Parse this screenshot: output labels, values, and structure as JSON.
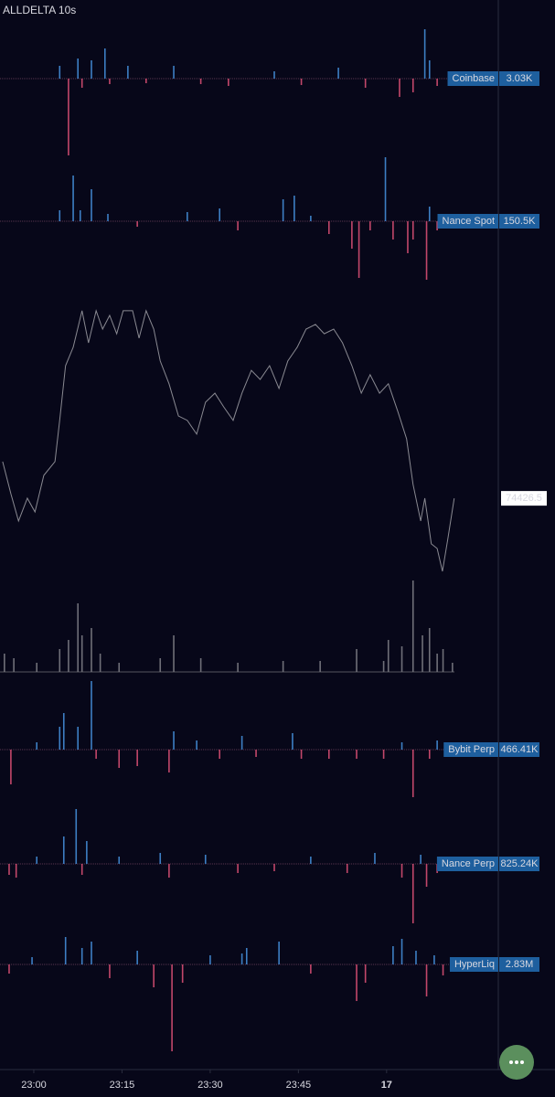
{
  "header": {
    "title": "ALLDELTA 10s"
  },
  "x_axis": {
    "xlim": [
      -5.75,
      79
    ],
    "xticks": [
      {
        "value": 0,
        "label": "23:00"
      },
      {
        "value": 15,
        "label": "23:15"
      },
      {
        "value": 30,
        "label": "23:30"
      },
      {
        "value": 45,
        "label": "23:45"
      },
      {
        "value": 60,
        "label": "17"
      }
    ]
  },
  "chart_data": [
    {
      "type": "delta",
      "label": "Coinbase",
      "badge": "3.03K",
      "up_color": "#3d7fc4",
      "down_color": "#c2476a",
      "ylim": [
        -90,
        60
      ],
      "x": [
        4.4,
        5.9,
        7.5,
        8.2,
        9.8,
        12.1,
        12.9,
        16.0,
        19.1,
        23.8,
        28.4,
        33.1,
        40.9,
        45.5,
        51.8,
        56.4,
        62.2,
        64.5,
        66.5,
        67.3,
        68.6
      ],
      "values": [
        14,
        -84,
        22,
        -10,
        20,
        33,
        -6,
        14,
        -5,
        14,
        -6,
        -8,
        8,
        -7,
        12,
        -10,
        -20,
        -15,
        54,
        20,
        -8
      ]
    },
    {
      "type": "delta",
      "label": "Nance Spot",
      "badge": "150.5K",
      "up_color": "#3d7fc4",
      "down_color": "#c2476a",
      "ylim": [
        -74,
        76
      ],
      "x": [
        4.4,
        6.7,
        7.9,
        9.8,
        12.6,
        17.6,
        26.1,
        31.6,
        34.7,
        42.4,
        44.3,
        47.1,
        50.2,
        54.1,
        55.3,
        57.2,
        59.8,
        61.1,
        63.6,
        64.5,
        66.8,
        67.3,
        68.6
      ],
      "values": [
        12,
        50,
        12,
        35,
        8,
        -6,
        10,
        14,
        -10,
        24,
        28,
        6,
        -14,
        -30,
        -62,
        -10,
        70,
        -20,
        -35,
        -20,
        -64,
        16,
        -10
      ]
    },
    {
      "type": "line",
      "color": "#8a8a92",
      "last_price": 74426.5,
      "ylim": [
        74130,
        75130
      ],
      "x": [
        -5.3,
        -3.9,
        -2.6,
        -1.1,
        0.2,
        1.7,
        3.6,
        4.4,
        5.4,
        6.7,
        8.2,
        9.3,
        10.6,
        11.7,
        12.9,
        14.1,
        15.2,
        16.8,
        17.9,
        19.1,
        20.4,
        21.5,
        23.0,
        24.6,
        26.1,
        27.7,
        29.2,
        30.8,
        32.3,
        33.9,
        35.4,
        37.0,
        38.5,
        40.1,
        41.7,
        43.2,
        44.8,
        46.3,
        47.9,
        49.4,
        51.0,
        52.5,
        54.1,
        55.7,
        57.2,
        58.8,
        60.3,
        61.9,
        63.4,
        64.5,
        65.8,
        66.5,
        67.6,
        68.6,
        69.5,
        70.4,
        71.5
      ],
      "values": [
        74552,
        74442,
        74349,
        74427,
        74380,
        74505,
        74552,
        74693,
        74880,
        74943,
        75068,
        74958,
        75068,
        75005,
        75052,
        74989,
        75068,
        75068,
        74974,
        75068,
        75005,
        74896,
        74818,
        74708,
        74693,
        74646,
        74755,
        74786,
        74739,
        74693,
        74786,
        74864,
        74833,
        74880,
        74802,
        74896,
        74943,
        75005,
        75021,
        74989,
        75005,
        74958,
        74880,
        74786,
        74849,
        74786,
        74818,
        74724,
        74630,
        74474,
        74349,
        74427,
        74271,
        74255,
        74177,
        74286,
        74426.5
      ]
    },
    {
      "type": "volume",
      "color": "#6f6f78",
      "ylim": [
        0,
        110
      ],
      "x": [
        -5.0,
        -3.4,
        0.5,
        4.4,
        5.9,
        7.5,
        8.2,
        9.8,
        11.3,
        14.5,
        21.5,
        23.8,
        28.4,
        34.7,
        42.4,
        48.7,
        54.9,
        59.5,
        60.3,
        62.6,
        64.5,
        66.1,
        67.3,
        68.6,
        69.6,
        71.2
      ],
      "values": [
        20,
        15,
        10,
        25,
        35,
        75,
        40,
        48,
        20,
        10,
        15,
        40,
        15,
        10,
        12,
        12,
        25,
        12,
        35,
        28,
        100,
        40,
        48,
        20,
        25,
        10
      ]
    },
    {
      "type": "delta",
      "label": "Bybit Perp",
      "badge": "466.41K",
      "up_color": "#3d7fc4",
      "down_color": "#c2476a",
      "ylim": [
        -60,
        80
      ],
      "x": [
        -3.9,
        0.5,
        4.4,
        5.1,
        7.5,
        9.8,
        10.6,
        14.5,
        17.6,
        23.0,
        23.8,
        27.7,
        31.6,
        35.4,
        37.8,
        44.0,
        45.5,
        50.2,
        54.9,
        59.5,
        62.6,
        64.5,
        67.3,
        68.6
      ],
      "values": [
        -38,
        8,
        25,
        40,
        25,
        75,
        -10,
        -20,
        -18,
        -25,
        20,
        10,
        -10,
        15,
        -8,
        18,
        -10,
        -10,
        -10,
        -10,
        8,
        -52,
        -10,
        10
      ]
    },
    {
      "type": "delta",
      "label": "Nance Perp",
      "badge": "825.24K",
      "up_color": "#3d7fc4",
      "down_color": "#c2476a",
      "ylim": [
        -75,
        75
      ],
      "x": [
        -4.2,
        -3.0,
        0.5,
        5.1,
        7.2,
        8.2,
        9.0,
        14.5,
        21.5,
        23.0,
        29.2,
        34.7,
        40.9,
        47.1,
        53.3,
        58.0,
        62.6,
        64.5,
        65.8,
        66.8,
        68.6
      ],
      "values": [
        -12,
        -15,
        8,
        30,
        60,
        -12,
        25,
        8,
        12,
        -15,
        10,
        -10,
        -8,
        8,
        -10,
        12,
        -15,
        -65,
        10,
        -25,
        -10
      ]
    },
    {
      "type": "delta",
      "label": "HyperLiq",
      "badge": "2.83M",
      "up_color": "#3d7fc4",
      "down_color": "#c2476a",
      "ylim": [
        -105,
        45
      ],
      "x": [
        -4.2,
        -0.3,
        5.4,
        8.2,
        9.8,
        12.9,
        17.6,
        20.4,
        23.5,
        25.3,
        30.0,
        35.4,
        36.2,
        41.7,
        47.1,
        54.9,
        56.4,
        61.1,
        62.6,
        65.0,
        66.8,
        68.1,
        69.6
      ],
      "values": [
        -10,
        8,
        30,
        18,
        25,
        -15,
        15,
        -25,
        -95,
        -20,
        10,
        12,
        18,
        25,
        -10,
        -40,
        -20,
        20,
        28,
        15,
        -35,
        10,
        -12
      ]
    }
  ]
}
